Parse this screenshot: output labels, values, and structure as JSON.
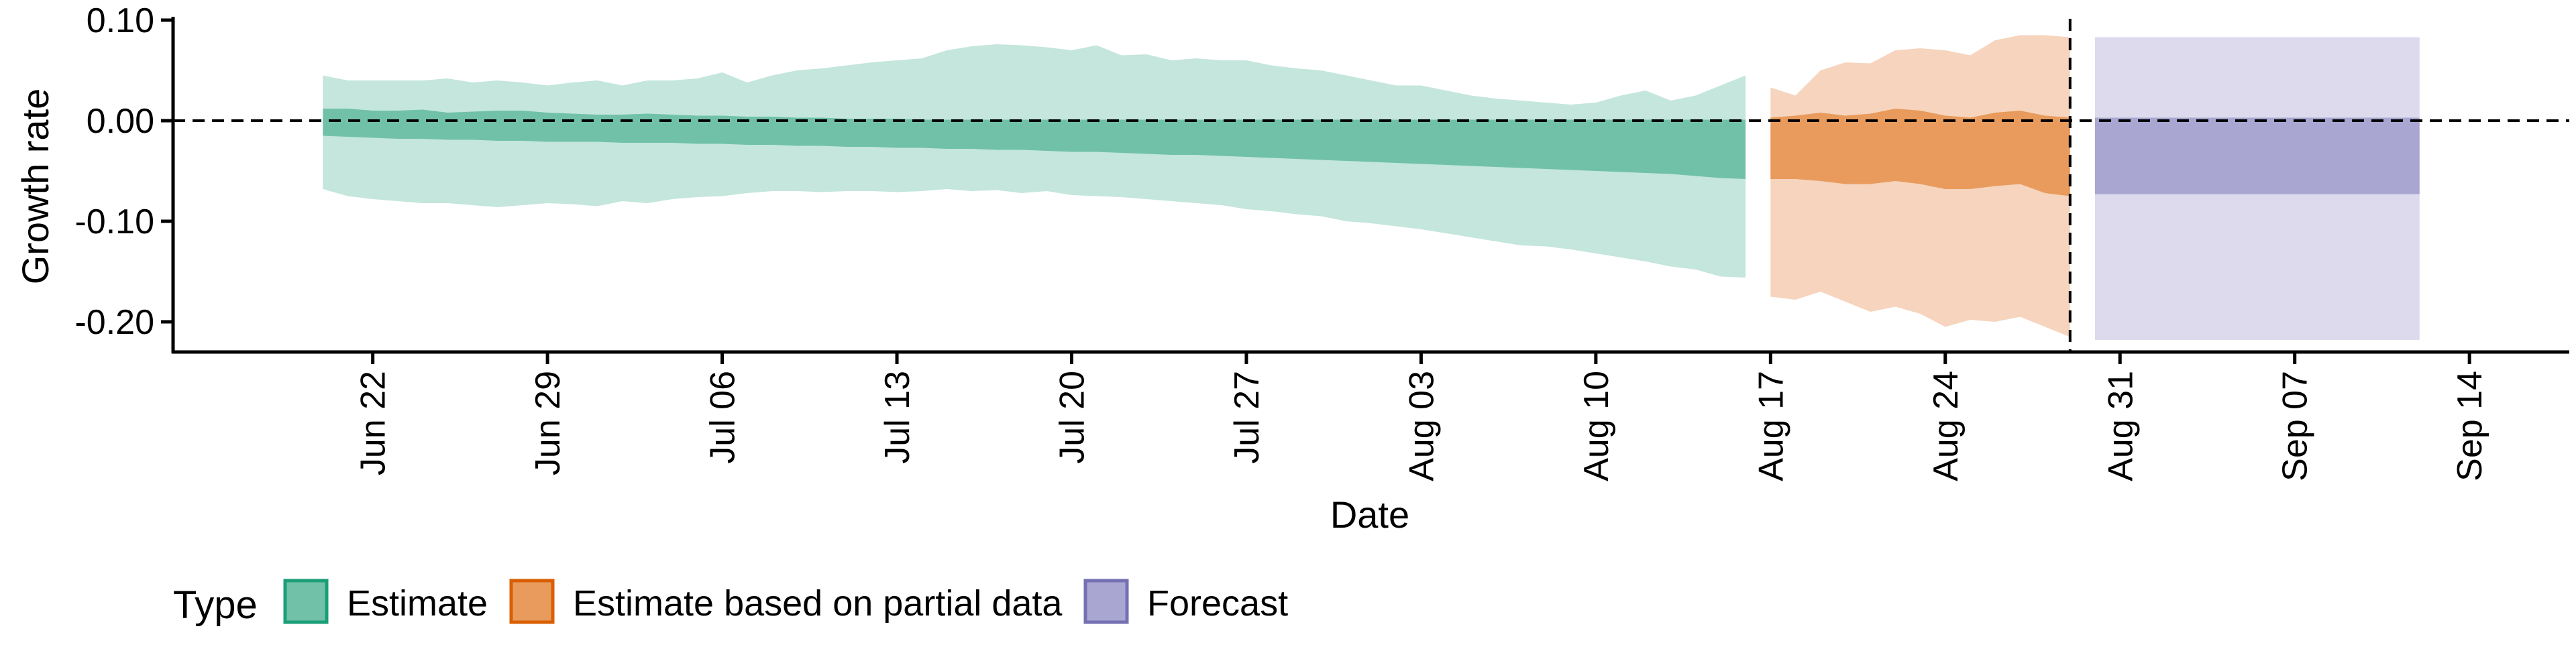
{
  "chart_data": {
    "type": "area",
    "title": "",
    "xlabel": "Date",
    "ylabel": "Growth rate",
    "x_axis": {
      "type": "date",
      "min": "2020-06-14",
      "max": "2020-09-18",
      "ticks": [
        "2020-06-22",
        "2020-06-29",
        "2020-07-06",
        "2020-07-13",
        "2020-07-20",
        "2020-07-27",
        "2020-08-03",
        "2020-08-10",
        "2020-08-17",
        "2020-08-24",
        "2020-08-31",
        "2020-09-07",
        "2020-09-14"
      ],
      "tick_labels": [
        "Jun 22",
        "Jun 29",
        "Jul 06",
        "Jul 13",
        "Jul 20",
        "Jul 27",
        "Aug 03",
        "Aug 10",
        "Aug 17",
        "Aug 24",
        "Aug 31",
        "Sep 07",
        "Sep 14"
      ],
      "tick_label_rotation": -90
    },
    "y_axis": {
      "min": -0.23,
      "max": 0.1,
      "ticks": [
        -0.2,
        -0.1,
        0.0,
        0.1
      ],
      "tick_labels": [
        "-0.20",
        "-0.10",
        "0.00",
        "0.10"
      ]
    },
    "reference_lines": [
      {
        "orientation": "horizontal",
        "y": 0,
        "style": "dashed"
      },
      {
        "orientation": "vertical",
        "x": "2020-08-29",
        "style": "dashed"
      }
    ],
    "grid": false,
    "legend": {
      "title": "Type",
      "position": "bottom-left",
      "entries": [
        {
          "label": "Estimate",
          "fill": "#71c1a8",
          "stroke": "#1b9e77"
        },
        {
          "label": "Estimate based on partial data",
          "fill": "#e89b5d",
          "stroke": "#d95f02"
        },
        {
          "label": "Forecast",
          "fill": "#a9a6d1",
          "stroke": "#7570b3"
        }
      ]
    },
    "series": [
      {
        "name": "Estimate",
        "outer_color": "#c4e6dc",
        "inner_color": "#71c1a8",
        "x": [
          "2020-06-20",
          "2020-06-21",
          "2020-06-22",
          "2020-06-23",
          "2020-06-24",
          "2020-06-25",
          "2020-06-26",
          "2020-06-27",
          "2020-06-28",
          "2020-06-29",
          "2020-06-30",
          "2020-07-01",
          "2020-07-02",
          "2020-07-03",
          "2020-07-04",
          "2020-07-05",
          "2020-07-06",
          "2020-07-07",
          "2020-07-08",
          "2020-07-09",
          "2020-07-10",
          "2020-07-11",
          "2020-07-12",
          "2020-07-13",
          "2020-07-14",
          "2020-07-15",
          "2020-07-16",
          "2020-07-17",
          "2020-07-18",
          "2020-07-19",
          "2020-07-20",
          "2020-07-21",
          "2020-07-22",
          "2020-07-23",
          "2020-07-24",
          "2020-07-25",
          "2020-07-26",
          "2020-07-27",
          "2020-07-28",
          "2020-07-29",
          "2020-07-30",
          "2020-07-31",
          "2020-08-01",
          "2020-08-02",
          "2020-08-03",
          "2020-08-04",
          "2020-08-05",
          "2020-08-06",
          "2020-08-07",
          "2020-08-08",
          "2020-08-09",
          "2020-08-10",
          "2020-08-11",
          "2020-08-12",
          "2020-08-13",
          "2020-08-14",
          "2020-08-15",
          "2020-08-16"
        ],
        "upper_90": [
          0.045,
          0.04,
          0.04,
          0.04,
          0.04,
          0.042,
          0.038,
          0.04,
          0.038,
          0.035,
          0.038,
          0.04,
          0.035,
          0.04,
          0.04,
          0.042,
          0.048,
          0.038,
          0.045,
          0.05,
          0.052,
          0.055,
          0.058,
          0.06,
          0.062,
          0.07,
          0.074,
          0.076,
          0.075,
          0.073,
          0.07,
          0.075,
          0.065,
          0.066,
          0.06,
          0.062,
          0.06,
          0.06,
          0.055,
          0.052,
          0.05,
          0.045,
          0.04,
          0.035,
          0.035,
          0.03,
          0.025,
          0.022,
          0.02,
          0.018,
          0.016,
          0.018,
          0.025,
          0.03,
          0.02,
          0.025,
          0.035,
          0.045
        ],
        "upper_50": [
          0.012,
          0.012,
          0.01,
          0.01,
          0.011,
          0.008,
          0.009,
          0.01,
          0.01,
          0.008,
          0.007,
          0.006,
          0.006,
          0.007,
          0.006,
          0.005,
          0.005,
          0.004,
          0.004,
          0.003,
          0.003,
          0.002,
          0.002,
          0.002,
          0.001,
          0.001,
          0.001,
          0.001,
          0.001,
          0.001,
          0.001,
          0.001,
          0.001,
          0.001,
          0.001,
          0.001,
          0.001,
          0.001,
          0.001,
          0.001,
          0.001,
          0.001,
          0.001,
          0.001,
          0.001,
          0.001,
          0.001,
          0.001,
          0.001,
          0.001,
          0.001,
          0.001,
          0.001,
          0.001,
          0.001,
          0.001,
          0.001,
          0.001
        ],
        "lower_50": [
          -0.015,
          -0.016,
          -0.017,
          -0.018,
          -0.018,
          -0.019,
          -0.019,
          -0.02,
          -0.02,
          -0.021,
          -0.021,
          -0.021,
          -0.022,
          -0.022,
          -0.022,
          -0.023,
          -0.023,
          -0.024,
          -0.024,
          -0.025,
          -0.025,
          -0.026,
          -0.026,
          -0.027,
          -0.027,
          -0.028,
          -0.028,
          -0.029,
          -0.029,
          -0.03,
          -0.031,
          -0.031,
          -0.032,
          -0.033,
          -0.034,
          -0.034,
          -0.035,
          -0.036,
          -0.037,
          -0.038,
          -0.039,
          -0.04,
          -0.041,
          -0.042,
          -0.043,
          -0.044,
          -0.045,
          -0.046,
          -0.047,
          -0.048,
          -0.049,
          -0.05,
          -0.051,
          -0.052,
          -0.053,
          -0.055,
          -0.057,
          -0.058
        ],
        "lower_90": [
          -0.068,
          -0.075,
          -0.078,
          -0.08,
          -0.082,
          -0.082,
          -0.084,
          -0.086,
          -0.084,
          -0.082,
          -0.083,
          -0.085,
          -0.08,
          -0.082,
          -0.078,
          -0.076,
          -0.075,
          -0.072,
          -0.07,
          -0.07,
          -0.071,
          -0.07,
          -0.07,
          -0.071,
          -0.07,
          -0.068,
          -0.07,
          -0.069,
          -0.072,
          -0.07,
          -0.074,
          -0.075,
          -0.076,
          -0.078,
          -0.08,
          -0.082,
          -0.084,
          -0.088,
          -0.09,
          -0.093,
          -0.095,
          -0.1,
          -0.102,
          -0.105,
          -0.108,
          -0.112,
          -0.116,
          -0.12,
          -0.124,
          -0.125,
          -0.128,
          -0.132,
          -0.136,
          -0.14,
          -0.145,
          -0.148,
          -0.155,
          -0.156
        ]
      },
      {
        "name": "Estimate based on partial data",
        "outer_color": "#f6d4bd",
        "inner_color": "#e89b5d",
        "x": [
          "2020-08-17",
          "2020-08-18",
          "2020-08-19",
          "2020-08-20",
          "2020-08-21",
          "2020-08-22",
          "2020-08-23",
          "2020-08-24",
          "2020-08-25",
          "2020-08-26",
          "2020-08-27",
          "2020-08-28",
          "2020-08-29"
        ],
        "upper_90": [
          0.033,
          0.025,
          0.05,
          0.058,
          0.057,
          0.07,
          0.072,
          0.07,
          0.065,
          0.08,
          0.085,
          0.085,
          0.083
        ],
        "upper_50": [
          0.003,
          0.005,
          0.008,
          0.005,
          0.007,
          0.012,
          0.01,
          0.005,
          0.003,
          0.008,
          0.01,
          0.005,
          0.003
        ],
        "lower_50": [
          -0.058,
          -0.058,
          -0.06,
          -0.063,
          -0.063,
          -0.06,
          -0.063,
          -0.068,
          -0.068,
          -0.065,
          -0.063,
          -0.072,
          -0.075
        ],
        "lower_90": [
          -0.175,
          -0.178,
          -0.17,
          -0.18,
          -0.19,
          -0.185,
          -0.192,
          -0.205,
          -0.198,
          -0.2,
          -0.195,
          -0.205,
          -0.215
        ]
      },
      {
        "name": "Forecast",
        "outer_color": "#dcdaec",
        "inner_color": "#a9a6d1",
        "x": [
          "2020-08-30",
          "2020-09-12"
        ],
        "upper_90": [
          0.083,
          0.083
        ],
        "upper_50": [
          0.003,
          0.003
        ],
        "lower_50": [
          -0.073,
          -0.073
        ],
        "lower_90": [
          -0.218,
          -0.218
        ]
      }
    ]
  }
}
